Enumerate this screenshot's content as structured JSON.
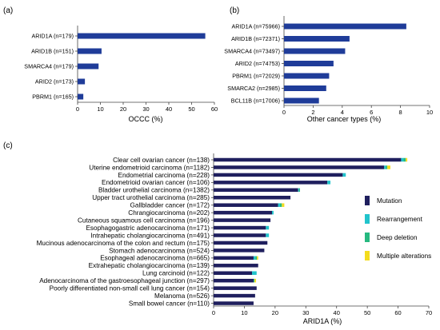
{
  "colors": {
    "bar": "#1f3c99",
    "mutation": "#1f1f5e",
    "rearrangement": "#22c4cc",
    "deep_deletion": "#27b980",
    "multiple_alterations": "#f3dc1e"
  },
  "chart_data": [
    {
      "type": "bar",
      "orientation": "horizontal",
      "panel_label": "(a)",
      "categories": [
        "ARID1A (n=179)",
        "ARID1B (n=151)",
        "SMARCA4 (n=179)",
        "ARID2 (n=173)",
        "PBRM1 (n=165)"
      ],
      "values": [
        56,
        10.5,
        9.2,
        3.2,
        2.5
      ],
      "xlabel": "OCCC (%)",
      "xlim": [
        0,
        60
      ],
      "xticks": [
        "0",
        "10",
        "20",
        "30",
        "40",
        "50",
        "60"
      ],
      "grid": false
    },
    {
      "type": "bar",
      "orientation": "horizontal",
      "panel_label": "(b)",
      "categories": [
        "ARID1A (n=75966)",
        "ARID1B (n=72371)",
        "SMARCA4 (n=73497)",
        "ARID2 (n=74753)",
        "PBRM1 (n=72029)",
        "SMARCA2 (n=2985)",
        "BCL11B (n=17006)"
      ],
      "values": [
        8.4,
        4.5,
        4.2,
        3.4,
        3.1,
        2.9,
        2.4
      ],
      "xlabel": "Other cancer types  (%)",
      "xlim": [
        0,
        10
      ],
      "xticks": [
        "0",
        "2",
        "4",
        "6",
        "8",
        "10"
      ],
      "grid": false
    },
    {
      "type": "bar",
      "orientation": "horizontal",
      "stacked": true,
      "panel_label": "(c)",
      "categories": [
        "Clear cell ovarian cancer (n=138)",
        "Uterine endometrioid carcinoma (n=1182)",
        "Endometrial carcinoma (n=228)",
        "Endometrioid ovarian cancer (n=106)",
        "Bladder urothelial carcinoma (n=1382)",
        "Upper tract urothelial carcinoma (n=285)",
        "Gallbladder cancer (n=172)",
        "Chrangiocarcinoma (n=202)",
        "Cutaneous squamous cell carcinoma (n=196)",
        "Esophagogastric adenocarcinoma (n=171)",
        "Intrahepatic cholangiocarcinoma (n=491)",
        "Mucinous adenocarcinoma of the colon and rectum (n=175)",
        "Stomach adenocarcinoma (n=524)",
        "Esophageal adenocarcinoma (n=665)",
        "Extrahepatic cholangiocarcinoma (n=139)",
        "Lung carcinoid (n=122)",
        "Adenocarcinoma of the gastroesophageal junction (n=297)",
        "Poorly differentiated non-small cell lung cancer (n=154)",
        "Melanoma (n=526)",
        "Small bowel cancer (n=110)"
      ],
      "series": [
        {
          "name": "Mutation",
          "values": [
            61,
            55.5,
            42,
            37,
            27.5,
            25,
            21,
            19,
            18.5,
            17,
            17,
            17.5,
            16.5,
            13,
            14.5,
            12.5,
            13,
            14,
            13.5,
            13
          ]
        },
        {
          "name": "Rearrangement",
          "values": [
            0.8,
            0.5,
            1,
            1,
            0.3,
            0,
            0.6,
            0.5,
            0,
            1,
            1,
            0,
            0,
            0.6,
            0,
            1.5,
            0,
            0,
            0,
            0
          ]
        },
        {
          "name": "Deep deletion",
          "values": [
            0.7,
            0.5,
            0,
            0,
            0.3,
            0,
            0.6,
            0,
            0,
            0,
            0,
            0,
            0,
            0.5,
            0,
            0,
            0.3,
            0,
            0,
            0
          ]
        },
        {
          "name": "Multiple alterations",
          "values": [
            0.5,
            1,
            0,
            0,
            0,
            0,
            0.8,
            0,
            0,
            0,
            0,
            0,
            0,
            0.4,
            0,
            0,
            0.5,
            0,
            0,
            0
          ]
        }
      ],
      "xlabel": "ARID1A (%)",
      "xlim": [
        0,
        70
      ],
      "xticks": [
        "0",
        "10",
        "20",
        "30",
        "40",
        "50",
        "60",
        "70"
      ],
      "legend_placement": "right",
      "grid": false
    }
  ]
}
